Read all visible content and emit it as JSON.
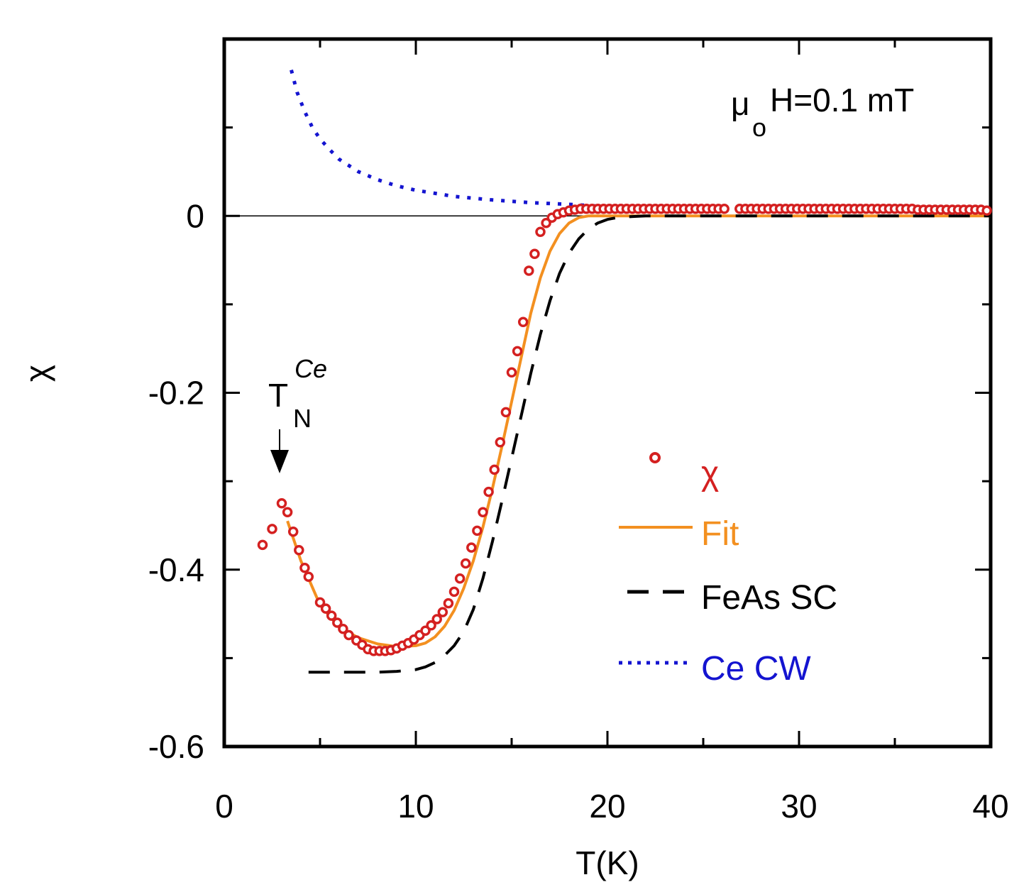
{
  "chart_data": {
    "type": "line",
    "title": "",
    "xlabel": "T(K)",
    "ylabel": "χ",
    "xlim": [
      0,
      40
    ],
    "ylim": [
      -0.6,
      0.2
    ],
    "xticks": [
      0,
      10,
      20,
      30,
      40
    ],
    "xtick_labels": [
      "0",
      "10",
      "20",
      "30",
      "40"
    ],
    "yticks": [
      -0.6,
      -0.4,
      -0.2,
      0
    ],
    "ytick_labels": [
      "-0.6",
      "-0.4",
      "-0.2",
      "0"
    ],
    "zero_line": 0,
    "annotations": {
      "field": {
        "prefix": "μ",
        "subscript": "o",
        "suffix": "H=0.1 mT"
      },
      "transition": {
        "base": "T",
        "subscript": "N",
        "superscript": "Ce",
        "arrow_x": 2.9,
        "arrow_y": -0.285
      }
    },
    "legend": {
      "position": "right",
      "entries": [
        {
          "label": "χ",
          "series": "chi"
        },
        {
          "label": "Fit",
          "series": "fit"
        },
        {
          "label": "FeAs SC",
          "series": "feas"
        },
        {
          "label": "Ce CW",
          "series": "cecw"
        }
      ]
    },
    "colors": {
      "chi": "#d42020",
      "fit": "#f39020",
      "feas": "#000000",
      "cecw": "#1414d0",
      "axis": "#000000"
    },
    "series": [
      {
        "name": "chi",
        "style": "markers",
        "x": [
          2.0,
          2.5,
          3.0,
          3.3,
          3.6,
          3.9,
          4.2,
          4.4,
          5.0,
          5.3,
          5.6,
          5.9,
          6.2,
          6.5,
          6.9,
          7.2,
          7.5,
          7.8,
          8.1,
          8.4,
          8.7,
          9.0,
          9.3,
          9.6,
          9.9,
          10.2,
          10.5,
          10.8,
          11.1,
          11.4,
          11.7,
          12.0,
          12.3,
          12.6,
          12.9,
          13.2,
          13.5,
          13.8,
          14.1,
          14.4,
          14.7,
          15.0,
          15.3,
          15.6,
          15.9,
          16.2,
          16.5,
          16.8,
          17.1,
          17.4,
          17.7,
          18.0,
          18.3,
          18.6,
          18.9,
          19.2,
          19.5,
          19.8,
          20.1,
          20.4,
          20.7,
          21.0,
          21.3,
          21.6,
          21.9,
          22.2,
          22.5,
          22.8,
          23.1,
          23.4,
          23.7,
          24.0,
          24.3,
          24.6,
          24.9,
          25.2,
          25.5,
          25.8,
          26.1,
          26.9,
          27.2,
          27.5,
          27.8,
          28.1,
          28.4,
          28.7,
          29.0,
          29.3,
          29.6,
          29.9,
          30.2,
          30.5,
          30.8,
          31.1,
          31.4,
          31.7,
          32.0,
          32.3,
          32.6,
          32.9,
          33.2,
          33.5,
          33.8,
          34.1,
          34.4,
          34.7,
          35.0,
          35.3,
          35.6,
          35.9,
          36.2,
          36.5,
          36.8,
          37.1,
          37.4,
          37.7,
          38.0,
          38.3,
          38.6,
          38.9,
          39.2,
          39.5,
          39.8
        ],
        "y": [
          -0.372,
          -0.354,
          -0.325,
          -0.335,
          -0.357,
          -0.378,
          -0.398,
          -0.408,
          -0.437,
          -0.444,
          -0.452,
          -0.46,
          -0.467,
          -0.474,
          -0.48,
          -0.485,
          -0.49,
          -0.492,
          -0.492,
          -0.492,
          -0.491,
          -0.489,
          -0.486,
          -0.483,
          -0.479,
          -0.474,
          -0.469,
          -0.463,
          -0.456,
          -0.448,
          -0.438,
          -0.425,
          -0.41,
          -0.393,
          -0.375,
          -0.356,
          -0.335,
          -0.312,
          -0.287,
          -0.256,
          -0.222,
          -0.177,
          -0.153,
          -0.12,
          -0.062,
          -0.043,
          -0.018,
          -0.008,
          -0.002,
          0.002,
          0.004,
          0.006,
          0.007,
          0.008,
          0.008,
          0.008,
          0.008,
          0.008,
          0.008,
          0.008,
          0.008,
          0.008,
          0.008,
          0.008,
          0.008,
          0.008,
          0.008,
          0.008,
          0.008,
          0.008,
          0.008,
          0.008,
          0.008,
          0.008,
          0.008,
          0.008,
          0.008,
          0.008,
          0.008,
          0.008,
          0.008,
          0.008,
          0.008,
          0.008,
          0.008,
          0.008,
          0.008,
          0.008,
          0.008,
          0.008,
          0.008,
          0.008,
          0.008,
          0.008,
          0.008,
          0.008,
          0.008,
          0.008,
          0.008,
          0.008,
          0.008,
          0.008,
          0.008,
          0.008,
          0.008,
          0.008,
          0.008,
          0.008,
          0.008,
          0.008,
          0.007,
          0.007,
          0.007,
          0.007,
          0.007,
          0.007,
          0.007,
          0.007,
          0.007,
          0.007,
          0.007,
          0.007,
          0.006
        ]
      },
      {
        "name": "fit",
        "style": "solid",
        "x": [
          3.3,
          4.0,
          5.0,
          6.0,
          7.0,
          8.0,
          9.0,
          10.0,
          10.5,
          11.0,
          11.5,
          12.0,
          12.5,
          13.0,
          13.5,
          14.0,
          14.5,
          15.0,
          15.5,
          16.0,
          16.5,
          17.0,
          17.5,
          18.0,
          18.5,
          19.0,
          19.5,
          20.0,
          21.0,
          22.0,
          24.0,
          30.0,
          40.0
        ],
        "y": [
          -0.345,
          -0.39,
          -0.44,
          -0.465,
          -0.477,
          -0.484,
          -0.487,
          -0.486,
          -0.483,
          -0.476,
          -0.464,
          -0.446,
          -0.421,
          -0.39,
          -0.352,
          -0.308,
          -0.26,
          -0.21,
          -0.16,
          -0.11,
          -0.07,
          -0.04,
          -0.02,
          -0.008,
          -0.002,
          0.0,
          0.0,
          0.0,
          0.0,
          0.0,
          0.0,
          0.0,
          0.0
        ]
      },
      {
        "name": "feas",
        "style": "dashed",
        "x": [
          4.4,
          6.0,
          8.0,
          9.0,
          10.0,
          10.5,
          11.0,
          11.5,
          12.0,
          12.5,
          13.0,
          13.5,
          14.0,
          14.5,
          15.0,
          15.5,
          16.0,
          16.5,
          17.0,
          17.5,
          18.0,
          18.5,
          19.0,
          19.5,
          20.0,
          20.5,
          21.0,
          22.0,
          25.0,
          30.0,
          40.0
        ],
        "y": [
          -0.516,
          -0.516,
          -0.516,
          -0.515,
          -0.513,
          -0.51,
          -0.505,
          -0.497,
          -0.486,
          -0.47,
          -0.445,
          -0.41,
          -0.368,
          -0.322,
          -0.274,
          -0.226,
          -0.178,
          -0.134,
          -0.096,
          -0.065,
          -0.042,
          -0.026,
          -0.015,
          -0.008,
          -0.004,
          -0.002,
          -0.001,
          0.0,
          0.0,
          0.0,
          0.0
        ]
      },
      {
        "name": "cecw",
        "style": "dotted",
        "x": [
          3.5,
          3.8,
          4.2,
          4.6,
          5.0,
          5.5,
          6.0,
          7.0,
          8.0,
          9.0,
          10.0,
          12.0,
          14.0,
          16.0,
          18.0,
          19.5
        ],
        "y": [
          0.165,
          0.14,
          0.118,
          0.1,
          0.087,
          0.075,
          0.064,
          0.05,
          0.041,
          0.034,
          0.029,
          0.022,
          0.018,
          0.015,
          0.013,
          0.011
        ]
      }
    ]
  }
}
